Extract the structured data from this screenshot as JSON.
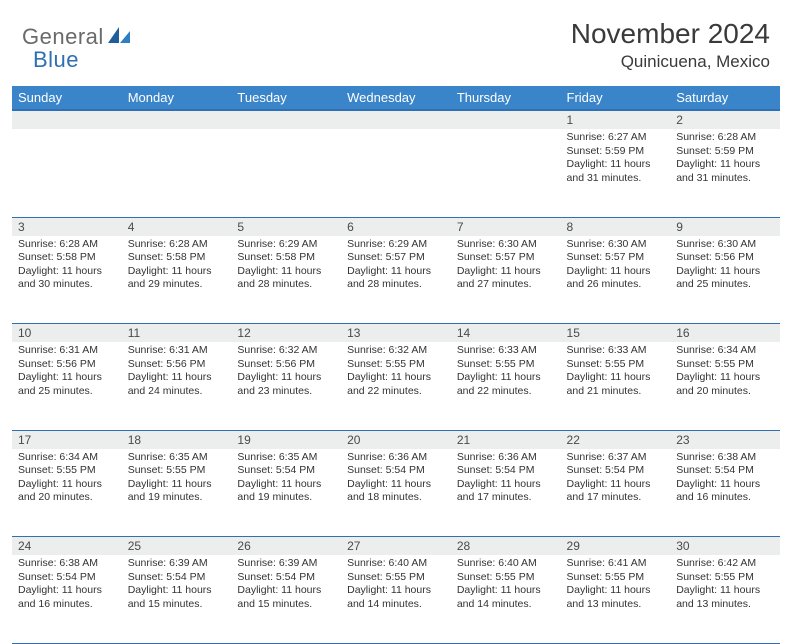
{
  "brand": {
    "part1": "General",
    "part2": "Blue"
  },
  "title": "November 2024",
  "location": "Quinicuena, Mexico",
  "colors": {
    "header_bg": "#3a85c9",
    "header_border": "#2f6fb3",
    "daynum_bg": "#eceded",
    "text": "#333333",
    "logo_gray": "#6a6a6a",
    "logo_blue": "#2f6fb3"
  },
  "weekdays": [
    "Sunday",
    "Monday",
    "Tuesday",
    "Wednesday",
    "Thursday",
    "Friday",
    "Saturday"
  ],
  "weeks": [
    [
      null,
      null,
      null,
      null,
      null,
      {
        "n": "1",
        "sr": "6:27 AM",
        "ss": "5:59 PM",
        "dl": "11 hours and 31 minutes."
      },
      {
        "n": "2",
        "sr": "6:28 AM",
        "ss": "5:59 PM",
        "dl": "11 hours and 31 minutes."
      }
    ],
    [
      {
        "n": "3",
        "sr": "6:28 AM",
        "ss": "5:58 PM",
        "dl": "11 hours and 30 minutes."
      },
      {
        "n": "4",
        "sr": "6:28 AM",
        "ss": "5:58 PM",
        "dl": "11 hours and 29 minutes."
      },
      {
        "n": "5",
        "sr": "6:29 AM",
        "ss": "5:58 PM",
        "dl": "11 hours and 28 minutes."
      },
      {
        "n": "6",
        "sr": "6:29 AM",
        "ss": "5:57 PM",
        "dl": "11 hours and 28 minutes."
      },
      {
        "n": "7",
        "sr": "6:30 AM",
        "ss": "5:57 PM",
        "dl": "11 hours and 27 minutes."
      },
      {
        "n": "8",
        "sr": "6:30 AM",
        "ss": "5:57 PM",
        "dl": "11 hours and 26 minutes."
      },
      {
        "n": "9",
        "sr": "6:30 AM",
        "ss": "5:56 PM",
        "dl": "11 hours and 25 minutes."
      }
    ],
    [
      {
        "n": "10",
        "sr": "6:31 AM",
        "ss": "5:56 PM",
        "dl": "11 hours and 25 minutes."
      },
      {
        "n": "11",
        "sr": "6:31 AM",
        "ss": "5:56 PM",
        "dl": "11 hours and 24 minutes."
      },
      {
        "n": "12",
        "sr": "6:32 AM",
        "ss": "5:56 PM",
        "dl": "11 hours and 23 minutes."
      },
      {
        "n": "13",
        "sr": "6:32 AM",
        "ss": "5:55 PM",
        "dl": "11 hours and 22 minutes."
      },
      {
        "n": "14",
        "sr": "6:33 AM",
        "ss": "5:55 PM",
        "dl": "11 hours and 22 minutes."
      },
      {
        "n": "15",
        "sr": "6:33 AM",
        "ss": "5:55 PM",
        "dl": "11 hours and 21 minutes."
      },
      {
        "n": "16",
        "sr": "6:34 AM",
        "ss": "5:55 PM",
        "dl": "11 hours and 20 minutes."
      }
    ],
    [
      {
        "n": "17",
        "sr": "6:34 AM",
        "ss": "5:55 PM",
        "dl": "11 hours and 20 minutes."
      },
      {
        "n": "18",
        "sr": "6:35 AM",
        "ss": "5:55 PM",
        "dl": "11 hours and 19 minutes."
      },
      {
        "n": "19",
        "sr": "6:35 AM",
        "ss": "5:54 PM",
        "dl": "11 hours and 19 minutes."
      },
      {
        "n": "20",
        "sr": "6:36 AM",
        "ss": "5:54 PM",
        "dl": "11 hours and 18 minutes."
      },
      {
        "n": "21",
        "sr": "6:36 AM",
        "ss": "5:54 PM",
        "dl": "11 hours and 17 minutes."
      },
      {
        "n": "22",
        "sr": "6:37 AM",
        "ss": "5:54 PM",
        "dl": "11 hours and 17 minutes."
      },
      {
        "n": "23",
        "sr": "6:38 AM",
        "ss": "5:54 PM",
        "dl": "11 hours and 16 minutes."
      }
    ],
    [
      {
        "n": "24",
        "sr": "6:38 AM",
        "ss": "5:54 PM",
        "dl": "11 hours and 16 minutes."
      },
      {
        "n": "25",
        "sr": "6:39 AM",
        "ss": "5:54 PM",
        "dl": "11 hours and 15 minutes."
      },
      {
        "n": "26",
        "sr": "6:39 AM",
        "ss": "5:54 PM",
        "dl": "11 hours and 15 minutes."
      },
      {
        "n": "27",
        "sr": "6:40 AM",
        "ss": "5:55 PM",
        "dl": "11 hours and 14 minutes."
      },
      {
        "n": "28",
        "sr": "6:40 AM",
        "ss": "5:55 PM",
        "dl": "11 hours and 14 minutes."
      },
      {
        "n": "29",
        "sr": "6:41 AM",
        "ss": "5:55 PM",
        "dl": "11 hours and 13 minutes."
      },
      {
        "n": "30",
        "sr": "6:42 AM",
        "ss": "5:55 PM",
        "dl": "11 hours and 13 minutes."
      }
    ]
  ],
  "labels": {
    "sunrise": "Sunrise: ",
    "sunset": "Sunset: ",
    "daylight": "Daylight: "
  }
}
